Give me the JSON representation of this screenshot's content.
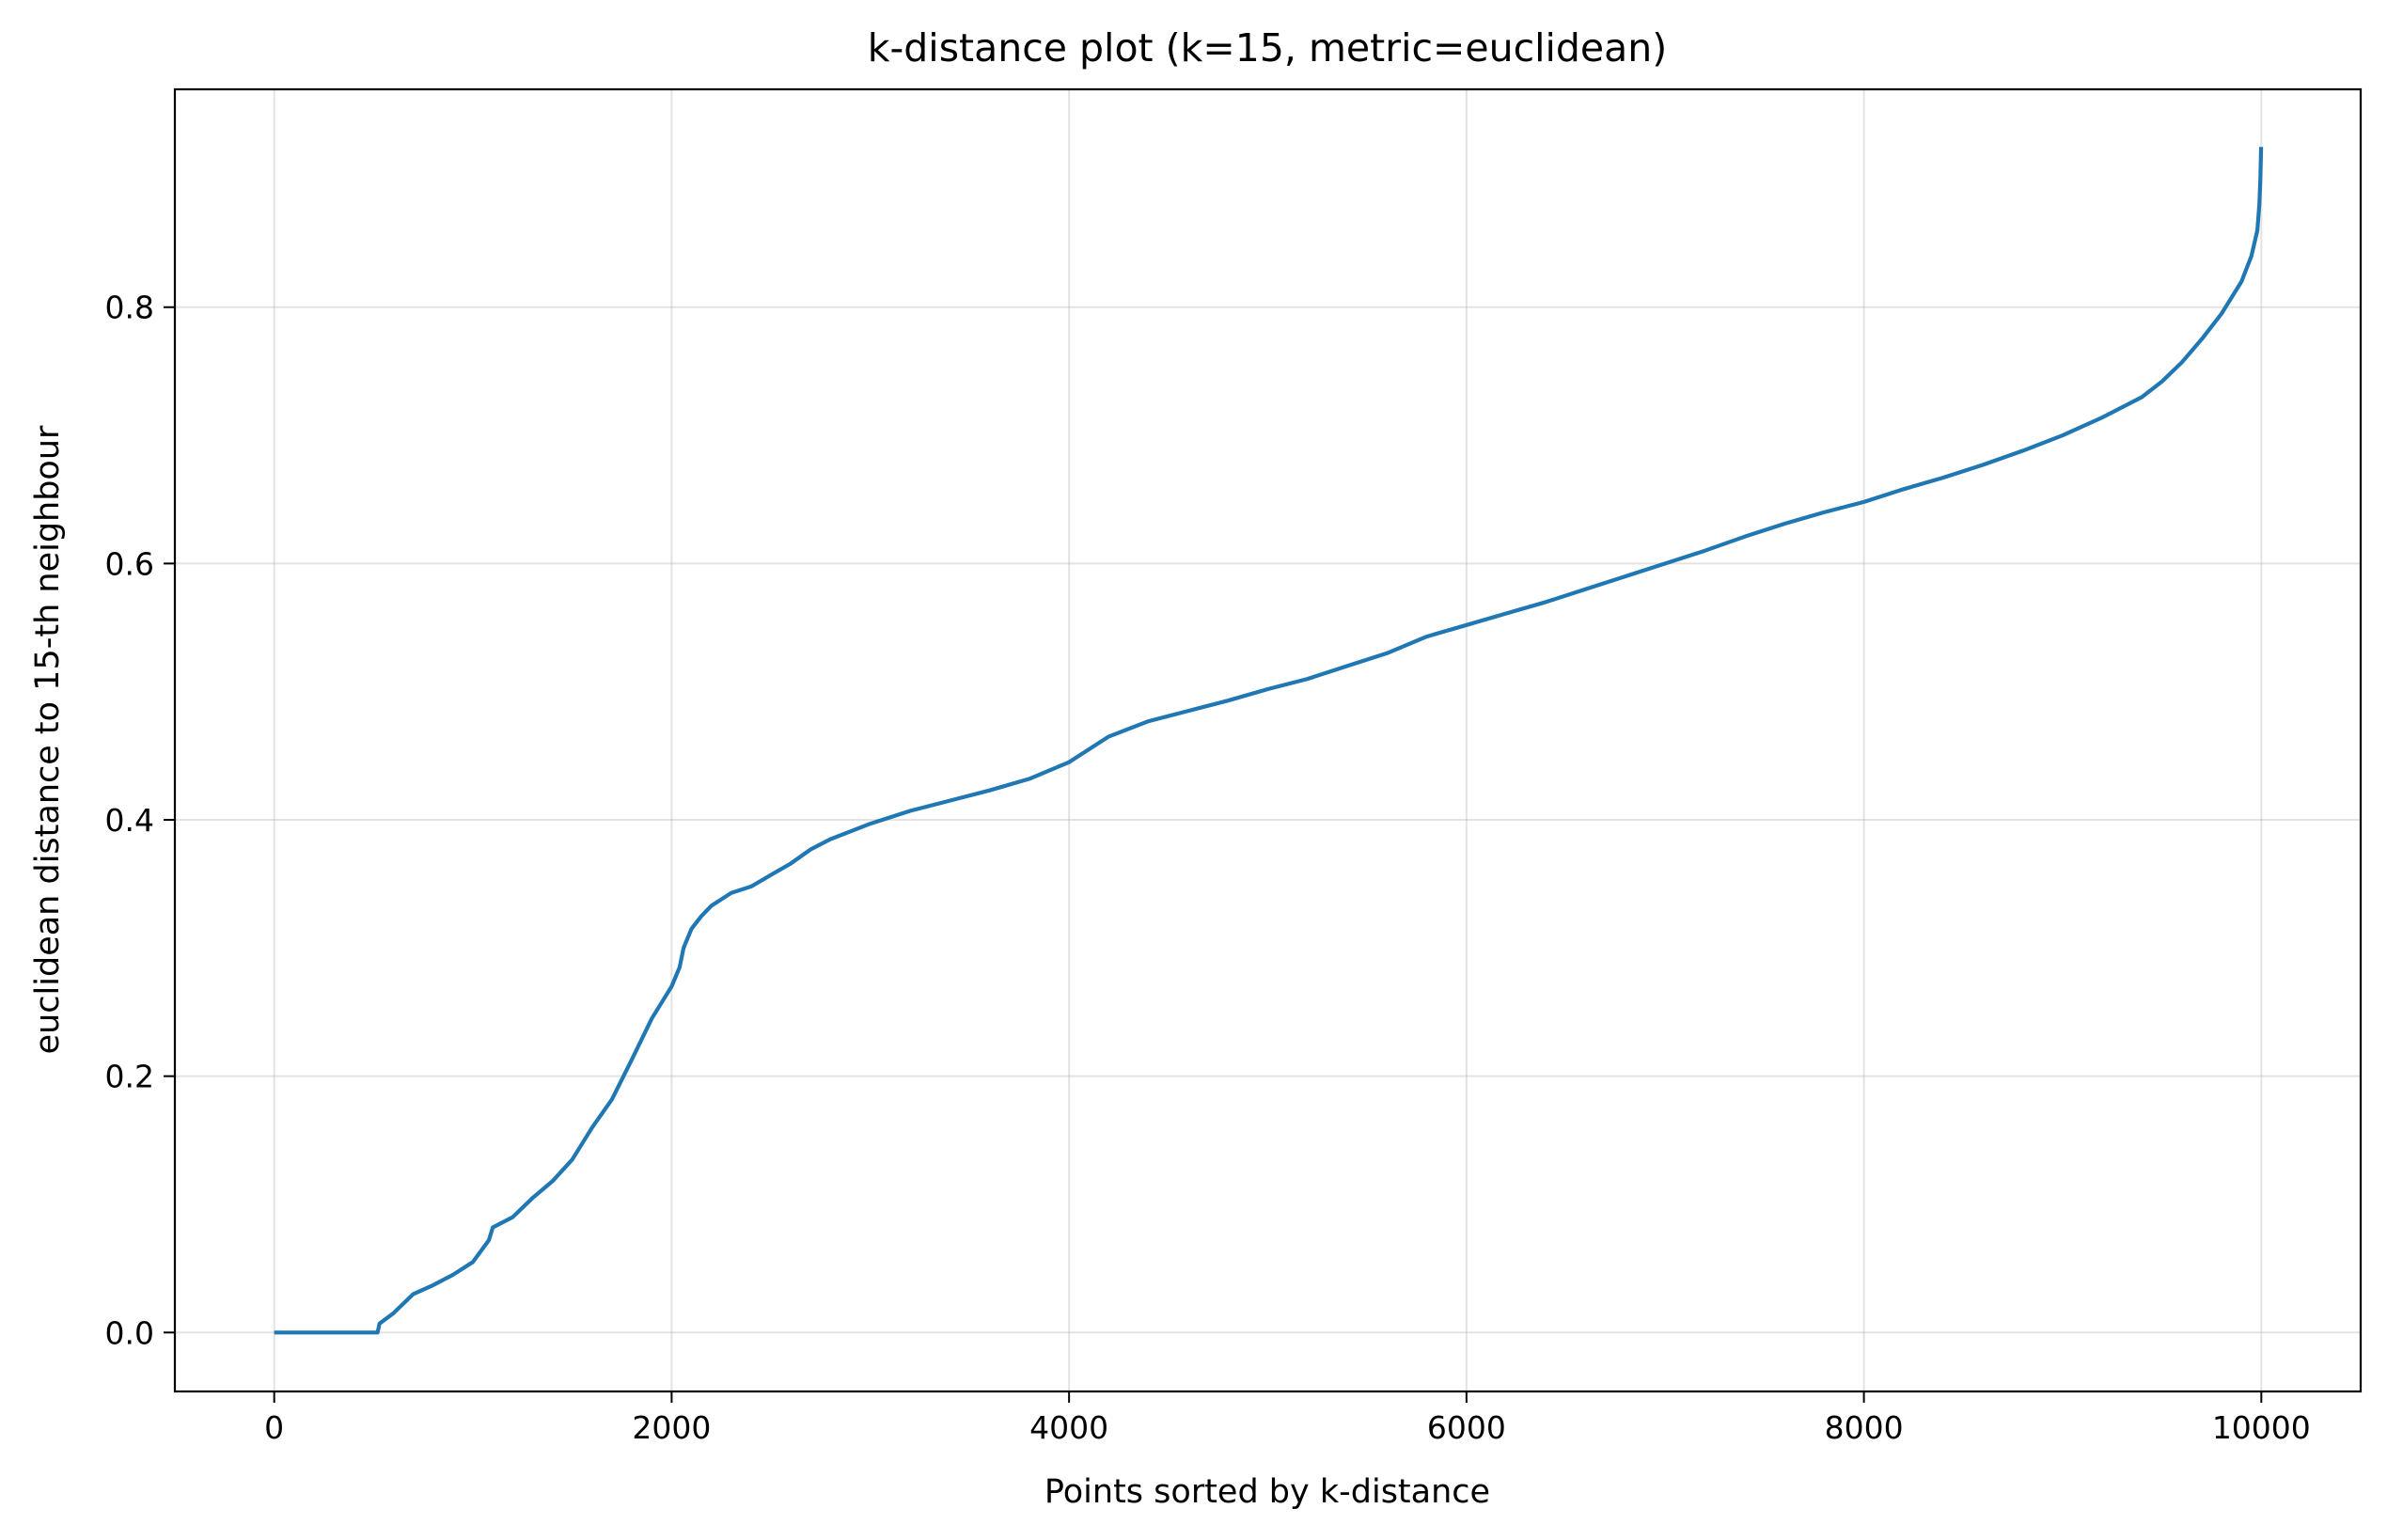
{
  "chart_data": {
    "type": "line",
    "title": "k-distance plot (k=15, metric=euclidean)",
    "xlabel": "Points sorted by k-distance",
    "ylabel": "euclidean distance to 15-th neighbour",
    "xlim": [
      -500,
      10500
    ],
    "ylim": [
      -0.046,
      0.97
    ],
    "xticks": [
      0,
      2000,
      4000,
      6000,
      8000,
      10000
    ],
    "xtick_labels": [
      "0",
      "2000",
      "4000",
      "6000",
      "8000",
      "10000"
    ],
    "yticks": [
      0.0,
      0.2,
      0.4,
      0.6,
      0.8
    ],
    "ytick_labels": [
      "0.0",
      "0.2",
      "0.4",
      "0.6",
      "0.8"
    ],
    "grid": true,
    "color": "#1f77b4",
    "series": [
      {
        "x": [
          0,
          520,
          530,
          600,
          700,
          800,
          900,
          1000,
          1080,
          1100,
          1200,
          1300,
          1400,
          1500,
          1600,
          1700,
          1800,
          1900,
          2000,
          2040,
          2060,
          2100,
          2150,
          2200,
          2300,
          2400,
          2500,
          2600,
          2700,
          2800,
          3000,
          3200,
          3400,
          3600,
          3800,
          4000,
          4200,
          4400,
          4600,
          4800,
          5000,
          5200,
          5400,
          5600,
          5800,
          6000,
          6200,
          6400,
          6600,
          6800,
          7000,
          7200,
          7400,
          7600,
          7800,
          8000,
          8200,
          8400,
          8600,
          8800,
          9000,
          9200,
          9400,
          9500,
          9600,
          9700,
          9800,
          9900,
          9950,
          9980,
          9990,
          9995,
          9999
        ],
        "y": [
          0.0,
          0.0,
          0.007,
          0.015,
          0.03,
          0.037,
          0.045,
          0.055,
          0.072,
          0.082,
          0.09,
          0.105,
          0.118,
          0.135,
          0.16,
          0.182,
          0.213,
          0.245,
          0.27,
          0.285,
          0.3,
          0.315,
          0.325,
          0.333,
          0.343,
          0.348,
          0.357,
          0.366,
          0.377,
          0.385,
          0.397,
          0.407,
          0.415,
          0.423,
          0.432,
          0.445,
          0.465,
          0.477,
          0.485,
          0.493,
          0.502,
          0.51,
          0.52,
          0.53,
          0.543,
          0.552,
          0.561,
          0.57,
          0.58,
          0.59,
          0.6,
          0.61,
          0.621,
          0.631,
          0.64,
          0.648,
          0.658,
          0.667,
          0.677,
          0.688,
          0.7,
          0.714,
          0.73,
          0.742,
          0.757,
          0.775,
          0.795,
          0.82,
          0.84,
          0.86,
          0.88,
          0.9,
          0.925
        ]
      }
    ]
  }
}
